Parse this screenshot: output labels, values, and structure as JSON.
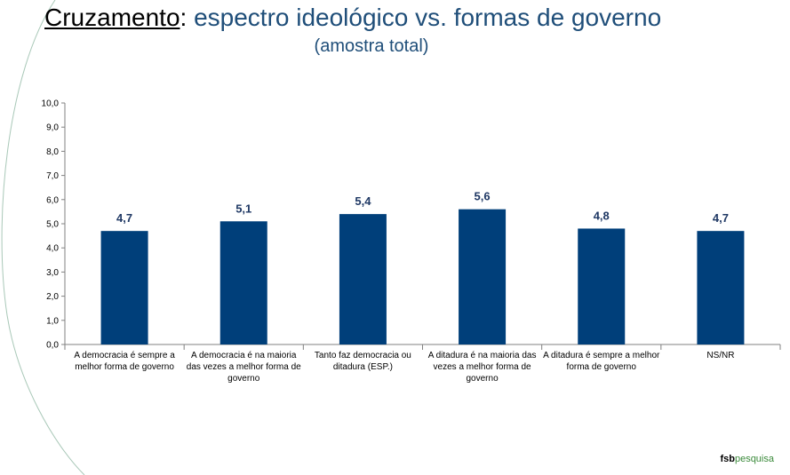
{
  "title": {
    "prefix": "Cruzamento",
    "colon": ":",
    "rest": " espectro ideológico vs. formas de governo"
  },
  "subtitle": "(amostra total)",
  "logo": {
    "part1": "fsb",
    "part2": "pesquisa"
  },
  "colors": {
    "bar": "#003f7a",
    "title": "#1f4e79",
    "value_label": "#1f3864",
    "logo_green": "#3a8a3a"
  },
  "chart_data": {
    "type": "bar",
    "categories": [
      "A democracia é sempre a melhor forma de governo",
      "A democracia é na maioria das vezes a melhor forma de governo",
      "Tanto faz democracia ou ditadura (ESP.)",
      "A ditadura é na maioria das vezes a melhor forma de governo",
      "A ditadura é sempre a melhor forma de governo",
      "NS/NR"
    ],
    "values": [
      4.7,
      5.1,
      5.4,
      5.6,
      4.8,
      4.7
    ],
    "value_labels": [
      "4,7",
      "5,1",
      "5,4",
      "5,6",
      "4,8",
      "4,7"
    ],
    "ylim": [
      0,
      10
    ],
    "yticks": [
      "0,0",
      "1,0",
      "2,0",
      "3,0",
      "4,0",
      "5,0",
      "6,0",
      "7,0",
      "8,0",
      "9,0",
      "10,0"
    ],
    "grid": false,
    "legend": "none"
  }
}
